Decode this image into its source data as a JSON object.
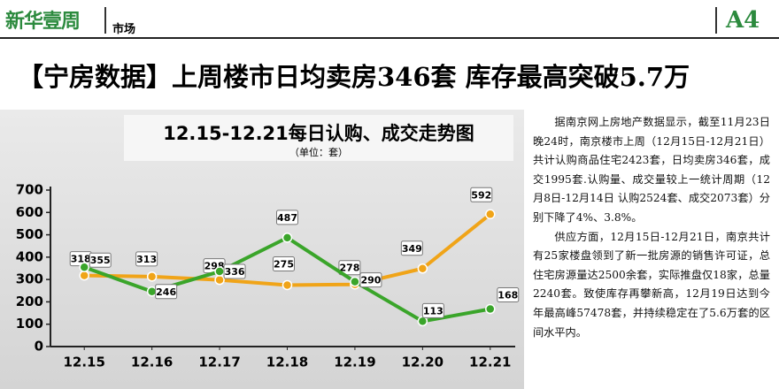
{
  "header": {
    "logo": "新华壹周",
    "section": "市场",
    "page": "A4"
  },
  "headline": "【宁房数据】上周楼市日均卖房346套 库存最高突破5.7万",
  "chart_data": {
    "type": "line",
    "title": "12.15-12.21每日认购、成交走势图",
    "subtitle": "（单位：套）",
    "categories": [
      "12.15",
      "12.16",
      "12.17",
      "12.18",
      "12.19",
      "12.20",
      "12.21"
    ],
    "series": [
      {
        "color": "#f0a418",
        "values": [
          318,
          313,
          298,
          275,
          278,
          349,
          592
        ]
      },
      {
        "color": "#3aa52a",
        "values": [
          355,
          246,
          336,
          487,
          290,
          113,
          168
        ]
      }
    ],
    "ylim": [
      0,
      700
    ],
    "yticks": [
      0,
      100,
      200,
      300,
      400,
      500,
      600,
      700
    ]
  },
  "article": {
    "paragraphs": [
      "据南京网上房地产数据显示，截至11月23日晚24时，南京楼市上周（12月15日-12月21日）共计认购商品住宅2423套，日均卖房346套，成交1995套.认购量、成交量较上一统计周期（12月8日-12月14日 认购2524套、成交2073套）分别下降了4%、3.8%。",
      "供应方面，12月15日-12月21日，南京共计有25家楼盘领到了新一批房源的销售许可证，总住宅房源量达2500余套，实际推盘仅18家，总量2240套。致使库存再攀新高，12月19日达到今年最高峰57478套，并持续稳定在了5.6万套的区间水平内。"
    ]
  }
}
